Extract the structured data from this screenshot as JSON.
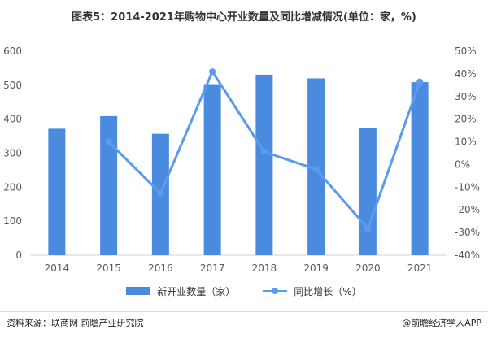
{
  "title": "图表5：2014-2021年购物中心开业数量及同比增减情况(单位：家，%)",
  "legend": {
    "bar_label": "新开业数量（家）",
    "line_label": "同比增长（%）"
  },
  "footer": {
    "source": "资料来源：联商网 前瞻产业研究院",
    "brand": "@前瞻经济学人APP"
  },
  "colors": {
    "bar": "#4a8be0",
    "line": "#5b9bec",
    "axis_text": "#595959",
    "grid": "#e3e3e3"
  },
  "chart_data": {
    "type": "bar",
    "categories": [
      "2014",
      "2015",
      "2016",
      "2017",
      "2018",
      "2019",
      "2020",
      "2021"
    ],
    "series": [
      {
        "name": "新开业数量（家）",
        "type": "bar",
        "axis": "left",
        "values": [
          372,
          409,
          357,
          503,
          531,
          520,
          373,
          509
        ]
      },
      {
        "name": "同比增长（%）",
        "type": "line",
        "axis": "right",
        "values": [
          null,
          10,
          -12.7,
          41,
          5.6,
          -2.1,
          -28.3,
          36.5
        ]
      }
    ],
    "left_axis": {
      "min": 0,
      "max": 600,
      "ticks": [
        "0",
        "100",
        "200",
        "300",
        "400",
        "500",
        "600"
      ]
    },
    "right_axis": {
      "min": -40,
      "max": 50,
      "ticks": [
        "-40%",
        "-30%",
        "-20%",
        "-10%",
        "0%",
        "10%",
        "20%",
        "30%",
        "40%",
        "50%"
      ]
    },
    "grid": false,
    "legend_position": "bottom"
  }
}
